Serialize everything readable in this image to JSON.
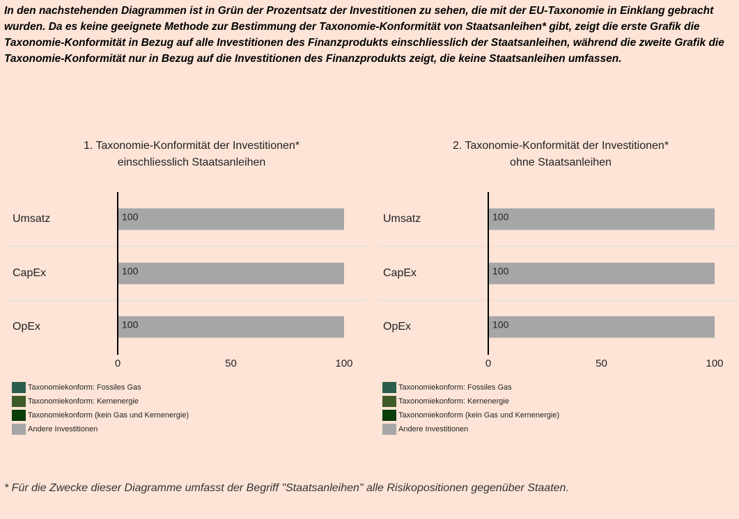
{
  "intro": "In den nachstehenden Diagrammen ist in Grün der Prozentsatz der Investitionen zu sehen, die mit der EU-Taxonomie in Einklang gebracht wurden. Da es keine geeignete Methode zur Bestimmung der Taxonomie-Konformität von Staatsanleihen* gibt, zeigt die erste Grafik die Taxonomie-Konformität in Bezug auf alle Investitionen des Finanzprodukts einschliesslich der Staatsanleihen, während die zweite Grafik die Taxonomie-Konformität nur in Bezug auf die Investitionen des Finanzprodukts zeigt, die keine Staatsanleihen umfassen.",
  "chart_data": [
    {
      "type": "stacked_barh",
      "title": "1. Taxonomie-Konformität der Investitionen*\neinschliesslich Staatsanleihen",
      "categories": [
        "Umsatz",
        "CapEx",
        "OpEx"
      ],
      "series": [
        {
          "name": "Taxonomiekonform: Fossiles Gas",
          "color": "#2d5e4b",
          "values": [
            0,
            0,
            0
          ]
        },
        {
          "name": "Taxonomiekonform: Kernenergie",
          "color": "#3e5a27",
          "values": [
            0,
            0,
            0
          ]
        },
        {
          "name": "Taxonomiekonform (kein Gas und Kernenergie)",
          "color": "#0b3d0b",
          "values": [
            0,
            0,
            0
          ]
        },
        {
          "name": "Andere Investitionen",
          "color": "#a6a6a6",
          "values": [
            100,
            100,
            100
          ]
        }
      ],
      "xlim": [
        0,
        100
      ],
      "xticks": [
        0,
        50,
        100
      ]
    },
    {
      "type": "stacked_barh",
      "title": "2. Taxonomie-Konformität der Investitionen*\nohne Staatsanleihen",
      "categories": [
        "Umsatz",
        "CapEx",
        "OpEx"
      ],
      "series": [
        {
          "name": "Taxonomiekonform: Fossiles Gas",
          "color": "#2d5e4b",
          "values": [
            0,
            0,
            0
          ]
        },
        {
          "name": "Taxonomiekonform: Kernenergie",
          "color": "#3e5a27",
          "values": [
            0,
            0,
            0
          ]
        },
        {
          "name": "Taxonomiekonform (kein Gas und Kernenergie)",
          "color": "#0b3d0b",
          "values": [
            0,
            0,
            0
          ]
        },
        {
          "name": "Andere Investitionen",
          "color": "#a6a6a6",
          "values": [
            100,
            100,
            100
          ]
        }
      ],
      "xlim": [
        0,
        100
      ],
      "xticks": [
        0,
        50,
        100
      ]
    }
  ],
  "footnote": "* Für die Zwecke dieser Diagramme umfasst der Begriff \"Staatsanleihen\" alle Risikopositionen gegenüber Staaten."
}
